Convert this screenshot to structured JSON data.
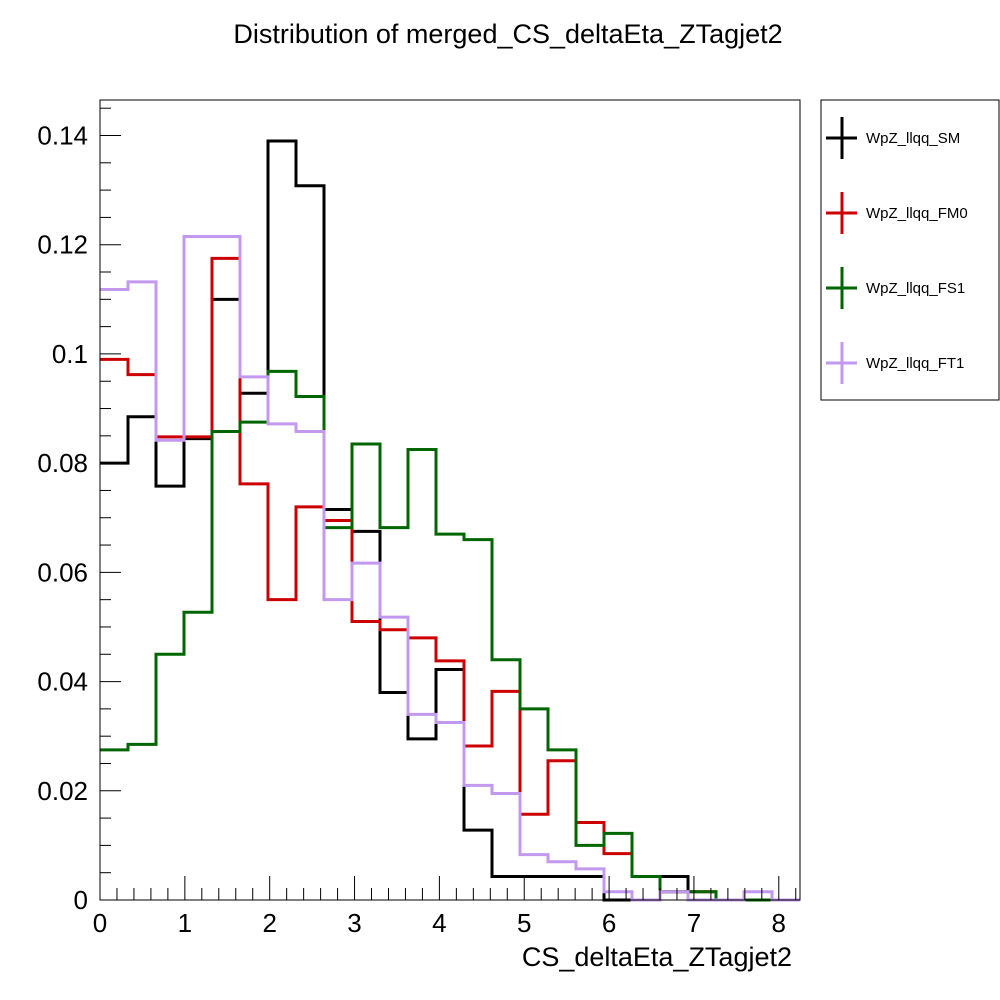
{
  "chart_data": {
    "type": "histogram",
    "title": "Distribution of merged_CS_deltaEta_ZTagjet2",
    "xlabel": "CS_deltaEta_ZTagjet2",
    "ylabel": "",
    "xlim": [
      0,
      8.25
    ],
    "ylim": [
      0,
      0.1465
    ],
    "bin_width": 0.33,
    "x_ticks": [
      0,
      1,
      2,
      3,
      4,
      5,
      6,
      7,
      8
    ],
    "y_ticks": [
      0,
      0.02,
      0.04,
      0.06,
      0.08,
      0.1,
      0.12,
      0.14
    ],
    "y_tick_labels": [
      "0",
      "0.02",
      "0.04",
      "0.06",
      "0.08",
      "0.1",
      "0.12",
      "0.14"
    ],
    "legend_position": "right",
    "series": [
      {
        "name": "WpZ_llqq_SM",
        "color": "#000000",
        "values": [
          0.08,
          0.0885,
          0.0758,
          0.0845,
          0.11,
          0.0928,
          0.139,
          0.1308,
          0.0715,
          0.0675,
          0.038,
          0.0295,
          0.0422,
          0.0128,
          0.0043,
          0.0043,
          0.0043,
          0.0043,
          0.0,
          0.0,
          0.0043,
          0.0,
          0.0,
          0.0,
          0.0
        ]
      },
      {
        "name": "WpZ_llqq_FM0",
        "color": "#cc0000",
        "values": [
          0.099,
          0.0962,
          0.0848,
          0.0848,
          0.1175,
          0.0762,
          0.055,
          0.072,
          0.0695,
          0.051,
          0.0495,
          0.048,
          0.0438,
          0.0282,
          0.0382,
          0.0157,
          0.0255,
          0.0142,
          0.0085,
          0.0043,
          0.0015,
          0.0015,
          0.0,
          0.0,
          0.0
        ]
      },
      {
        "name": "WpZ_llqq_FS1",
        "color": "#006600",
        "values": [
          0.0275,
          0.0285,
          0.045,
          0.0527,
          0.0858,
          0.0875,
          0.0968,
          0.0922,
          0.0682,
          0.0835,
          0.0682,
          0.0825,
          0.067,
          0.066,
          0.044,
          0.035,
          0.0275,
          0.01,
          0.0122,
          0.0043,
          0.0015,
          0.0015,
          0.0,
          0.0,
          0.0
        ]
      },
      {
        "name": "WpZ_llqq_FT1",
        "color": "#c399f0",
        "values": [
          0.1118,
          0.1132,
          0.0842,
          0.1215,
          0.1215,
          0.0958,
          0.0872,
          0.0858,
          0.055,
          0.0617,
          0.0518,
          0.034,
          0.0325,
          0.021,
          0.0195,
          0.0083,
          0.007,
          0.0057,
          0.0015,
          0.0,
          0.0015,
          0.0,
          0.0,
          0.0015,
          0.0
        ]
      }
    ]
  }
}
